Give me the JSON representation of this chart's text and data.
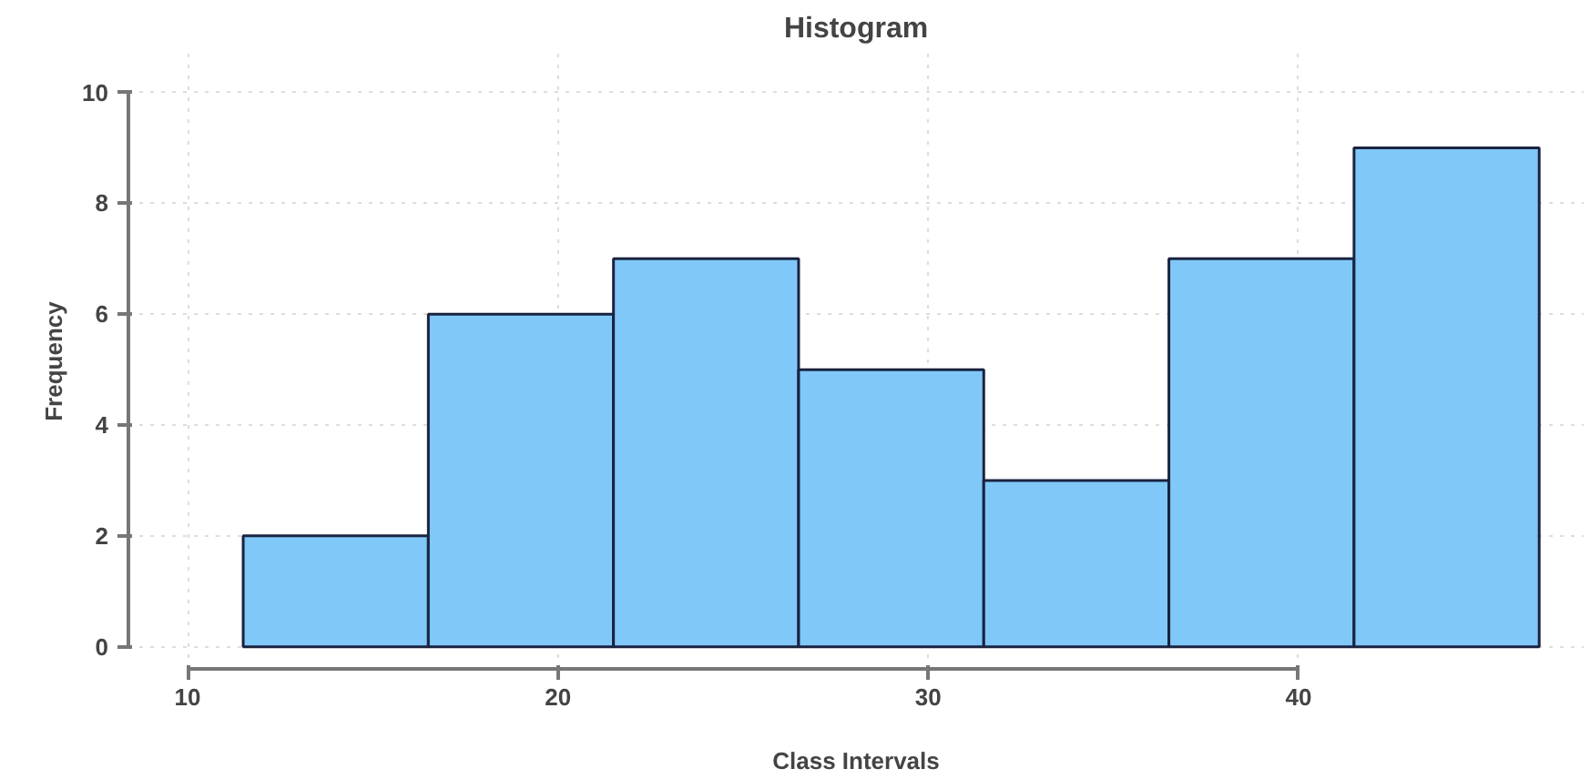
{
  "chart_data": {
    "type": "histogram",
    "title": "Histogram",
    "xlabel": "Class Intervals",
    "ylabel": "Frequency",
    "bins": [
      11.5,
      16.5,
      21.5,
      26.5,
      31.5,
      36.5,
      41.5,
      46.5
    ],
    "values": [
      2,
      6,
      7,
      5,
      3,
      7,
      9
    ],
    "color": "#80c8f7",
    "xlim": [
      8.4,
      47.7
    ],
    "ylim": [
      -0.4,
      10.7
    ],
    "xticks": [
      10,
      20,
      30,
      40
    ],
    "yticks": [
      0,
      2,
      4,
      6,
      8,
      10
    ],
    "grid": true
  }
}
